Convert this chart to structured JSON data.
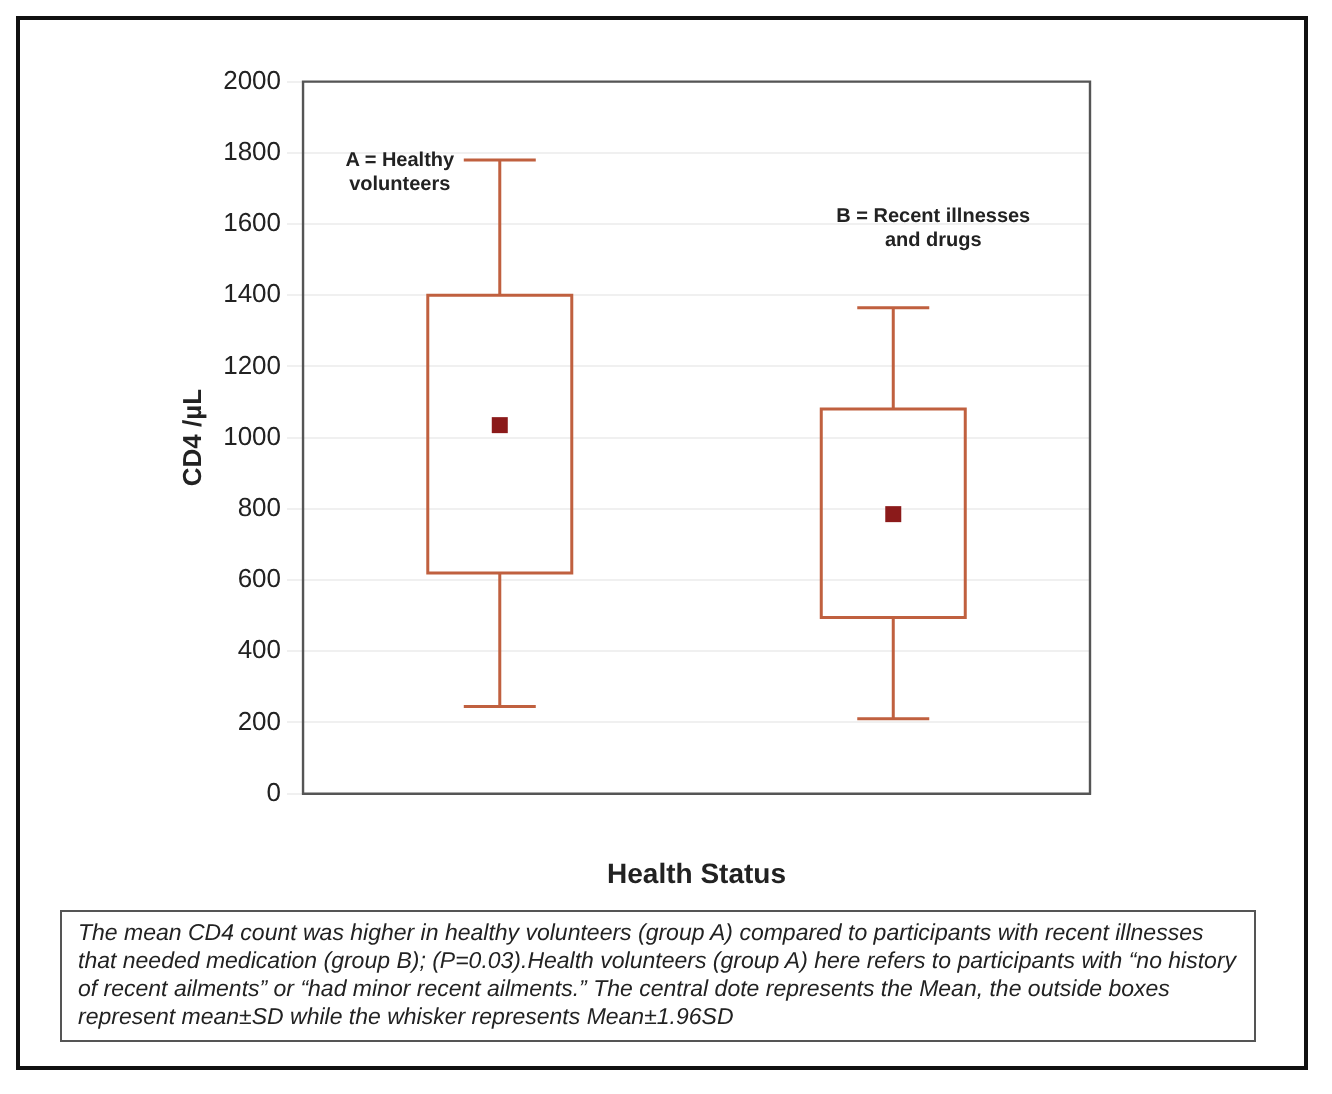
{
  "chart_data": {
    "type": "box",
    "categories": [
      null,
      null
    ],
    "xlabel": "Health Status",
    "ylabel": "CD4 /µL",
    "ylim": [
      0,
      2000
    ],
    "yticks": [
      0,
      200,
      400,
      600,
      800,
      1000,
      1200,
      1400,
      1600,
      1800,
      2000
    ],
    "grid": "y",
    "series": [
      {
        "color": "#c0603f",
        "boxes": [
          {
            "low": 245,
            "q1": 620,
            "q3": 1400,
            "high": 1780,
            "mean": 1035
          },
          {
            "low": 210,
            "q1": 495,
            "q3": 1080,
            "high": 1365,
            "mean": 785
          }
        ]
      }
    ],
    "annotations": [
      "A = Healthy volunteers",
      "B = Recent illnesses and drugs",
      "The mean CD4 count was higher in healthy volunteers (group A) compared to participants with recent illnesses that needed medication (group B); (P=0.03).Health volunteers (group A) here refers to participants with “no history of recent ailments” or “had minor recent ailments.” The central dote represents the Mean, the outside boxes represent mean±SD while the whisker represents Mean±1.96SD"
    ]
  }
}
